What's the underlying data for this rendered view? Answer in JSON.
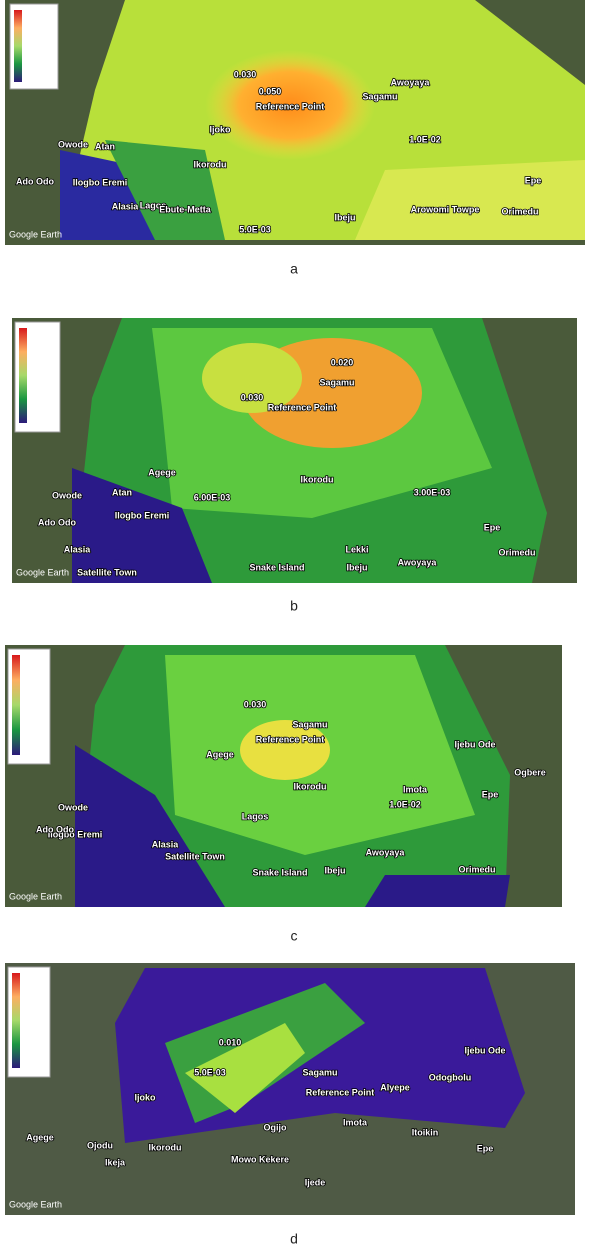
{
  "panels": [
    {
      "caption": "a",
      "watermark": "Google Earth",
      "labels": [
        "Reference Point",
        "Sagamu",
        "Awoyaya",
        "Ikorodu",
        "Lagos",
        "Ebute-Metta",
        "Alasia",
        "Ilogbo Eremi",
        "Owode",
        "Atan",
        "Ado Odo",
        "Epe",
        "Orimedu",
        "Ibeju",
        "Arowomi Towpe",
        "Ijoko",
        "0.030",
        "0.050",
        "1.0E-02",
        "5.0E-03"
      ]
    },
    {
      "caption": "b",
      "watermark": "Google Earth",
      "labels": [
        "Reference Point",
        "Sagamu",
        "Agege",
        "Ikorodu",
        "Satellite Town",
        "Snake Island",
        "Alasia",
        "Ilogbo Eremi",
        "Owode",
        "Atan",
        "Ado Odo",
        "Epe",
        "Orimedu",
        "Ibeju",
        "Lekki",
        "Awoyaya",
        "0.030",
        "0.020",
        "6.00E-03",
        "3.00E-03"
      ]
    },
    {
      "caption": "c",
      "watermark": "Google Earth",
      "labels": [
        "Reference Point",
        "Sagamu",
        "Agege",
        "Ikorodu",
        "Lagos",
        "Satellite Town",
        "Snake Island",
        "Alasia",
        "Ilogbo Eremi",
        "Owode",
        "Ado Odo",
        "Epe",
        "Orimedu",
        "Ibeju",
        "Awoyaya",
        "Ijebu Ode",
        "Ogbere",
        "Imota",
        "0.030",
        "1.0E-02"
      ]
    },
    {
      "caption": "d",
      "watermark": "Google Earth",
      "labels": [
        "Reference Point",
        "Sagamu",
        "Agege",
        "Ojodu",
        "Ikeja",
        "Ikorodu",
        "Ijoko",
        "Ogijo",
        "Imota",
        "Itoikin",
        "Ijebu Ode",
        "Epe",
        "Ijede",
        "Alyepe",
        "Odogbolu",
        "Mowo Kekere",
        "0.010",
        "5.0E-03"
      ]
    }
  ]
}
